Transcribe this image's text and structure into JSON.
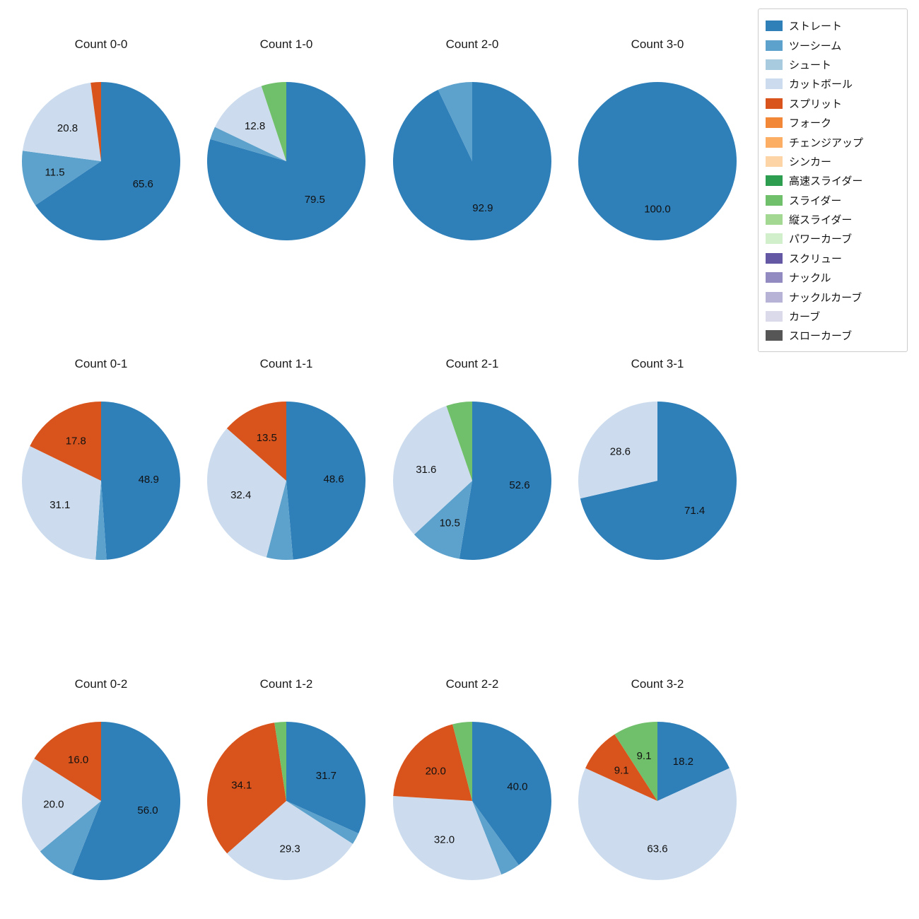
{
  "legend": {
    "items": [
      {
        "label": "ストレート",
        "color": "#2f7fb9"
      },
      {
        "label": "ツーシーム",
        "color": "#5da2cc"
      },
      {
        "label": "シュート",
        "color": "#a9cbe0"
      },
      {
        "label": "カットボール",
        "color": "#ccdcee"
      },
      {
        "label": "スプリット",
        "color": "#d9541c"
      },
      {
        "label": "フォーク",
        "color": "#f18737"
      },
      {
        "label": "チェンジアップ",
        "color": "#fcae64"
      },
      {
        "label": "シンカー",
        "color": "#fdd4a6"
      },
      {
        "label": "高速スライダー",
        "color": "#2d9e4f"
      },
      {
        "label": "スライダー",
        "color": "#70bf6a"
      },
      {
        "label": "縦スライダー",
        "color": "#a3d893"
      },
      {
        "label": "パワーカーブ",
        "color": "#d2efcc"
      },
      {
        "label": "スクリュー",
        "color": "#6458a5"
      },
      {
        "label": "ナックル",
        "color": "#928bc1"
      },
      {
        "label": "ナックルカーブ",
        "color": "#b6b3d6"
      },
      {
        "label": "カーブ",
        "color": "#dbdaea"
      },
      {
        "label": "スローカーブ",
        "color": "#565656"
      }
    ]
  },
  "chart_data": {
    "type": "pie",
    "unit": "percent",
    "start_angle": "top",
    "direction": "clockwise",
    "legend_position": "upper right",
    "charts": [
      {
        "title": "Count 0-0",
        "slices": [
          {
            "pitch": "ストレート",
            "value": 65.6,
            "label": "65.6"
          },
          {
            "pitch": "ツーシーム",
            "value": 11.5,
            "label": "11.5"
          },
          {
            "pitch": "カットボール",
            "value": 20.8,
            "label": "20.8"
          },
          {
            "pitch": "スプリット",
            "value": 2.1,
            "label": ""
          }
        ]
      },
      {
        "title": "Count 1-0",
        "slices": [
          {
            "pitch": "ストレート",
            "value": 79.5,
            "label": "79.5"
          },
          {
            "pitch": "ツーシーム",
            "value": 2.6,
            "label": ""
          },
          {
            "pitch": "カットボール",
            "value": 12.8,
            "label": "12.8"
          },
          {
            "pitch": "スライダー",
            "value": 5.1,
            "label": ""
          }
        ]
      },
      {
        "title": "Count 2-0",
        "slices": [
          {
            "pitch": "ストレート",
            "value": 92.9,
            "label": "92.9"
          },
          {
            "pitch": "ツーシーム",
            "value": 7.1,
            "label": ""
          }
        ]
      },
      {
        "title": "Count 3-0",
        "slices": [
          {
            "pitch": "ストレート",
            "value": 100.0,
            "label": "100.0"
          }
        ]
      },
      {
        "title": "Count 0-1",
        "slices": [
          {
            "pitch": "ストレート",
            "value": 48.9,
            "label": "48.9"
          },
          {
            "pitch": "ツーシーム",
            "value": 2.2,
            "label": ""
          },
          {
            "pitch": "カットボール",
            "value": 31.1,
            "label": "31.1"
          },
          {
            "pitch": "スプリット",
            "value": 17.8,
            "label": "17.8"
          }
        ]
      },
      {
        "title": "Count 1-1",
        "slices": [
          {
            "pitch": "ストレート",
            "value": 48.6,
            "label": "48.6"
          },
          {
            "pitch": "ツーシーム",
            "value": 5.4,
            "label": ""
          },
          {
            "pitch": "カットボール",
            "value": 32.4,
            "label": "32.4"
          },
          {
            "pitch": "スプリット",
            "value": 13.5,
            "label": "13.5"
          }
        ]
      },
      {
        "title": "Count 2-1",
        "slices": [
          {
            "pitch": "ストレート",
            "value": 52.6,
            "label": "52.6"
          },
          {
            "pitch": "ツーシーム",
            "value": 10.5,
            "label": "10.5"
          },
          {
            "pitch": "カットボール",
            "value": 31.6,
            "label": "31.6"
          },
          {
            "pitch": "スライダー",
            "value": 5.3,
            "label": ""
          }
        ]
      },
      {
        "title": "Count 3-1",
        "slices": [
          {
            "pitch": "ストレート",
            "value": 71.4,
            "label": "71.4"
          },
          {
            "pitch": "カットボール",
            "value": 28.6,
            "label": "28.6"
          }
        ]
      },
      {
        "title": "Count 0-2",
        "slices": [
          {
            "pitch": "ストレート",
            "value": 56.0,
            "label": "56.0"
          },
          {
            "pitch": "ツーシーム",
            "value": 8.0,
            "label": ""
          },
          {
            "pitch": "カットボール",
            "value": 20.0,
            "label": "20.0"
          },
          {
            "pitch": "スプリット",
            "value": 16.0,
            "label": "16.0"
          }
        ]
      },
      {
        "title": "Count 1-2",
        "slices": [
          {
            "pitch": "ストレート",
            "value": 31.7,
            "label": "31.7"
          },
          {
            "pitch": "ツーシーム",
            "value": 2.4,
            "label": ""
          },
          {
            "pitch": "カットボール",
            "value": 29.3,
            "label": "29.3"
          },
          {
            "pitch": "スプリット",
            "value": 34.1,
            "label": "34.1"
          },
          {
            "pitch": "スライダー",
            "value": 2.4,
            "label": ""
          }
        ]
      },
      {
        "title": "Count 2-2",
        "slices": [
          {
            "pitch": "ストレート",
            "value": 40.0,
            "label": "40.0"
          },
          {
            "pitch": "ツーシーム",
            "value": 4.0,
            "label": ""
          },
          {
            "pitch": "カットボール",
            "value": 32.0,
            "label": "32.0"
          },
          {
            "pitch": "スプリット",
            "value": 20.0,
            "label": "20.0"
          },
          {
            "pitch": "スライダー",
            "value": 4.0,
            "label": ""
          }
        ]
      },
      {
        "title": "Count 3-2",
        "slices": [
          {
            "pitch": "ストレート",
            "value": 18.2,
            "label": "18.2"
          },
          {
            "pitch": "カットボール",
            "value": 63.6,
            "label": "63.6"
          },
          {
            "pitch": "スプリット",
            "value": 9.1,
            "label": "9.1"
          },
          {
            "pitch": "スライダー",
            "value": 9.1,
            "label": "9.1"
          }
        ]
      }
    ]
  }
}
